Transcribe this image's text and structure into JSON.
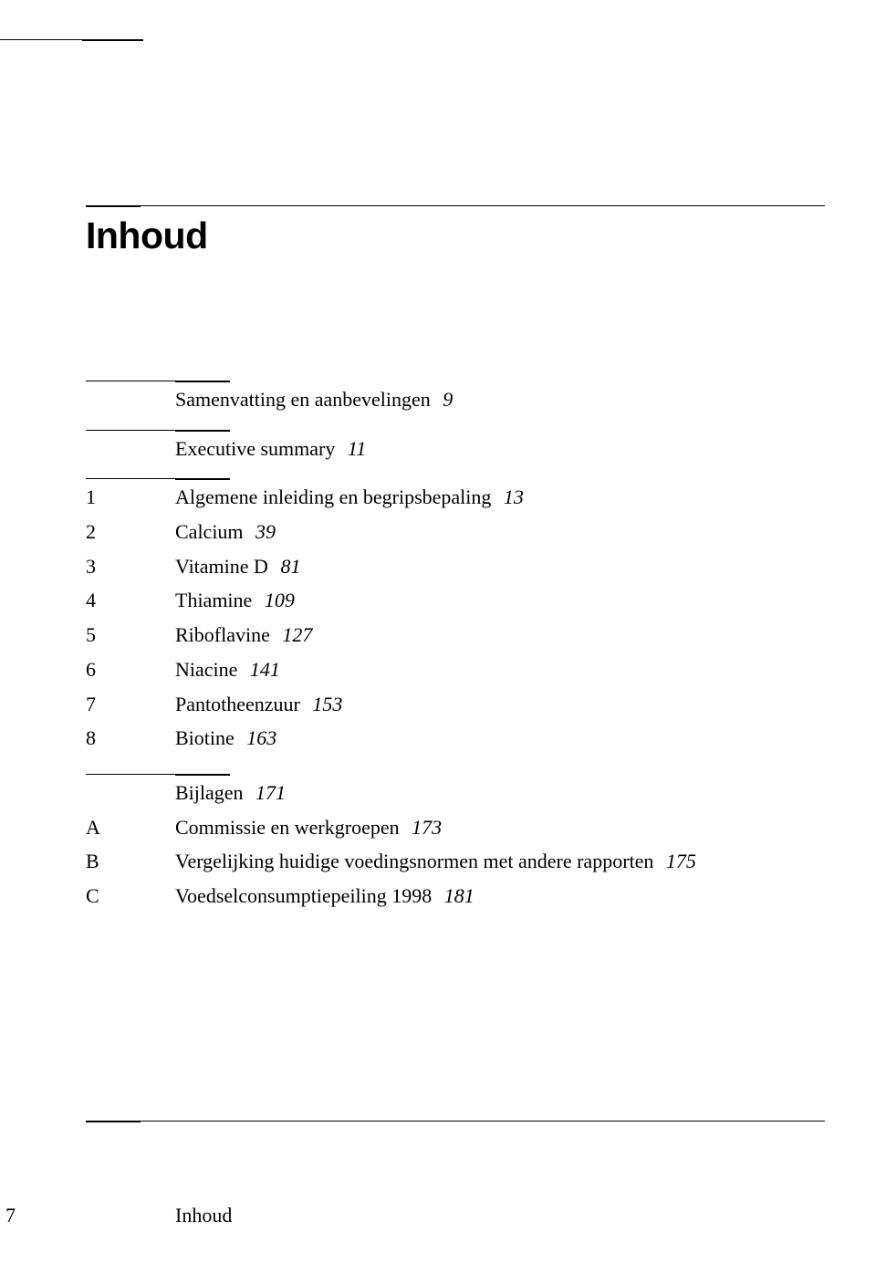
{
  "title": "Inhoud",
  "colors": {
    "text": "#000000",
    "background": "#ffffff",
    "rule": "#000000"
  },
  "typography": {
    "title_family": "Arial",
    "title_weight": "bold",
    "title_fontsize_pt": 31,
    "body_family": "Times New Roman",
    "body_fontsize_pt": 17
  },
  "sections": [
    {
      "entries": [
        {
          "num": "",
          "label": "Samenvatting en aanbevelingen",
          "page": "9"
        }
      ]
    },
    {
      "entries": [
        {
          "num": "",
          "label": "Executive summary",
          "page": "11"
        }
      ]
    },
    {
      "entries": [
        {
          "num": "1",
          "label": "Algemene inleiding en begripsbepaling",
          "page": "13"
        },
        {
          "num": "2",
          "label": "Calcium",
          "page": "39"
        },
        {
          "num": "3",
          "label": "Vitamine D",
          "page": "81"
        },
        {
          "num": "4",
          "label": "Thiamine",
          "page": "109"
        },
        {
          "num": "5",
          "label": "Riboflavine",
          "page": "127"
        },
        {
          "num": "6",
          "label": "Niacine",
          "page": "141"
        },
        {
          "num": "7",
          "label": "Pantotheenzuur",
          "page": "153"
        },
        {
          "num": "8",
          "label": "Biotine",
          "page": "163"
        }
      ]
    },
    {
      "entries": [
        {
          "num": "",
          "label": "Bijlagen",
          "page": "171"
        },
        {
          "num": "A",
          "label": "Commissie en werkgroepen",
          "page": "173"
        },
        {
          "num": "B",
          "label": "Vergelijking huidige voedingsnormen met andere rapporten",
          "page": "175"
        },
        {
          "num": "C",
          "label": "Voedselconsumptiepeiling 1998",
          "page": "181"
        }
      ]
    }
  ],
  "footer": {
    "page": "7",
    "section": "Inhoud"
  }
}
